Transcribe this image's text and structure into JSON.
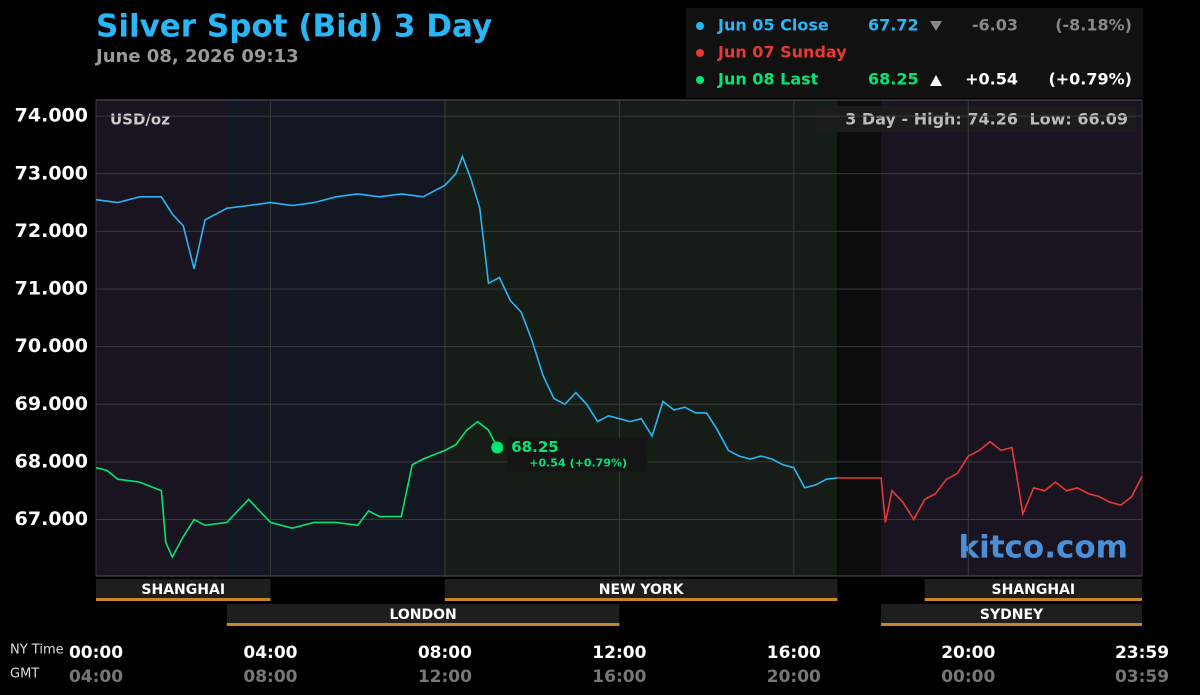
{
  "chart_data": {
    "type": "line",
    "title": "Silver Spot (Bid) 3 Day",
    "subtitle": "June 08, 2026 09:13",
    "y_label": "USD/oz",
    "range_label": "3 Day - High: 74.26",
    "range_low_label": "Low: 66.09",
    "watermark": "kitco.com",
    "x_label": "NY Time",
    "x2_label": "GMT",
    "xlim": [
      0,
      23.983
    ],
    "xticks": [
      {
        "value": 0,
        "label": "00:00"
      },
      {
        "value": 4,
        "label": "04:00"
      },
      {
        "value": 8,
        "label": "08:00"
      },
      {
        "value": 12,
        "label": "12:00"
      },
      {
        "value": 16,
        "label": "16:00"
      },
      {
        "value": 20,
        "label": "20:00"
      },
      {
        "value": 23.983,
        "label": "23:59"
      }
    ],
    "x2ticks": [
      {
        "value": 0,
        "label": "04:00"
      },
      {
        "value": 4,
        "label": "08:00"
      },
      {
        "value": 8,
        "label": "12:00"
      },
      {
        "value": 12,
        "label": "16:00"
      },
      {
        "value": 16,
        "label": "20:00"
      },
      {
        "value": 20,
        "label": "00:00"
      },
      {
        "value": 23.983,
        "label": "03:59"
      }
    ],
    "ylim": [
      66.02,
      74.28
    ],
    "yticks": [
      {
        "value": 67,
        "label": "67.000"
      },
      {
        "value": 68,
        "label": "68.000"
      },
      {
        "value": 69,
        "label": "69.000"
      },
      {
        "value": 70,
        "label": "70.000"
      },
      {
        "value": 71,
        "label": "71.000"
      },
      {
        "value": 72,
        "label": "72.000"
      },
      {
        "value": 73,
        "label": "73.000"
      },
      {
        "value": 74,
        "label": "74.000"
      }
    ],
    "grid": true,
    "series": [
      {
        "name": "Jun 05 Close",
        "color": "#29b6f6",
        "price": 67.72,
        "change": -6.03,
        "change_pct": "(-8.18%)",
        "x": [
          0,
          0.5,
          1,
          1.5,
          1.75,
          2,
          2.25,
          2.5,
          3,
          3.5,
          4,
          4.5,
          5,
          5.5,
          6,
          6.5,
          7,
          7.5,
          8,
          8.25,
          8.4,
          8.6,
          8.8,
          9,
          9.25,
          9.5,
          9.75,
          10,
          10.25,
          10.5,
          10.75,
          11,
          11.25,
          11.5,
          11.75,
          12,
          12.25,
          12.5,
          12.75,
          13,
          13.25,
          13.5,
          13.75,
          14,
          14.25,
          14.5,
          14.75,
          15,
          15.25,
          15.5,
          15.75,
          16,
          16.25,
          16.5,
          16.75,
          17
        ],
        "values": [
          72.55,
          72.5,
          72.6,
          72.6,
          72.3,
          72.1,
          71.35,
          72.2,
          72.4,
          72.45,
          72.5,
          72.45,
          72.5,
          72.6,
          72.65,
          72.6,
          72.65,
          72.6,
          72.8,
          73.0,
          73.3,
          72.9,
          72.4,
          71.1,
          71.2,
          70.8,
          70.6,
          70.1,
          69.5,
          69.1,
          69.0,
          69.2,
          69.0,
          68.7,
          68.8,
          68.75,
          68.7,
          68.75,
          68.45,
          69.05,
          68.9,
          68.95,
          68.85,
          68.85,
          68.55,
          68.2,
          68.1,
          68.05,
          68.1,
          68.05,
          67.95,
          67.9,
          67.55,
          67.6,
          67.7,
          67.72
        ]
      },
      {
        "name": "Jun 07 Sunday",
        "color": "#e53935",
        "x": [
          17,
          18,
          18.1,
          18.25,
          18.5,
          18.75,
          19,
          19.25,
          19.5,
          19.75,
          20,
          20.25,
          20.5,
          20.75,
          21,
          21.1,
          21.25,
          21.5,
          21.75,
          22,
          22.25,
          22.5,
          22.75,
          23,
          23.25,
          23.5,
          23.75,
          23.983
        ],
        "values": [
          67.72,
          67.72,
          66.95,
          67.5,
          67.3,
          67.0,
          67.35,
          67.45,
          67.7,
          67.8,
          68.1,
          68.2,
          68.35,
          68.2,
          68.25,
          67.8,
          67.1,
          67.55,
          67.5,
          67.65,
          67.5,
          67.55,
          67.45,
          67.4,
          67.3,
          67.25,
          67.4,
          67.75
        ]
      },
      {
        "name": "Jun 08 Last",
        "color": "#00e676",
        "price": 68.25,
        "change": {
          "value": 0.54,
          "label": "+0.54"
        },
        "change_pct": "(+0.79%)",
        "x": [
          0,
          0.25,
          0.5,
          1,
          1.5,
          1.6,
          1.75,
          2,
          2.25,
          2.5,
          3,
          3.5,
          4,
          4.5,
          5,
          5.5,
          6,
          6.25,
          6.5,
          7,
          7.25,
          7.5,
          8,
          8.25,
          8.5,
          8.75,
          9,
          9.2
        ],
        "values": [
          67.9,
          67.85,
          67.7,
          67.65,
          67.5,
          66.6,
          66.35,
          66.7,
          67.0,
          66.9,
          66.95,
          67.35,
          66.95,
          66.85,
          66.95,
          66.95,
          66.9,
          67.15,
          67.05,
          67.05,
          67.95,
          68.05,
          68.2,
          68.3,
          68.55,
          68.7,
          68.55,
          68.25
        ]
      }
    ],
    "sessions_top": [
      {
        "name": "SHANGHAI",
        "start": 0,
        "end": 4
      },
      {
        "name": "NEW YORK",
        "start": 8,
        "end": 17
      },
      {
        "name": "SHANGHAI",
        "start": 19,
        "end": 23.983
      }
    ],
    "sessions_bottom": [
      {
        "name": "LONDON",
        "start": 3,
        "end": 12
      },
      {
        "name": "SYDNEY",
        "start": 18,
        "end": 23.983
      }
    ]
  }
}
